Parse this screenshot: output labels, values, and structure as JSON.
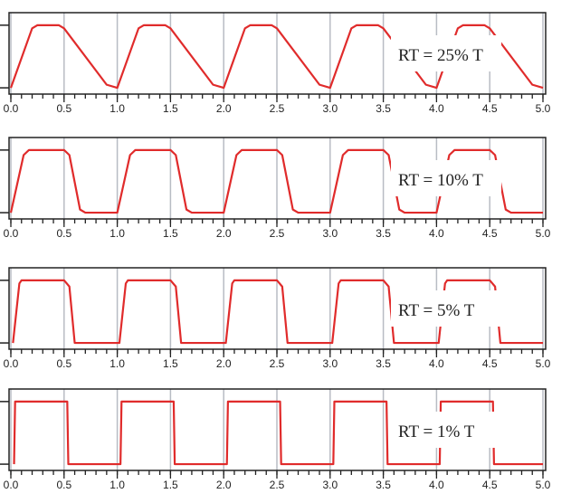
{
  "chart_data": [
    {
      "type": "line",
      "annotation": "RT = 25% T",
      "xlim": [
        0,
        5
      ],
      "ylim": [
        -0.1,
        1.2
      ],
      "yticks": [
        0,
        1
      ],
      "grid": true,
      "xticks": [
        {
          "value": 0,
          "label": "0.0"
        },
        0.5,
        {
          "value": 1,
          "label": "1.0"
        },
        1.5,
        {
          "value": 2,
          "label": "2.0"
        },
        2.5,
        {
          "value": 3,
          "label": "3.0"
        },
        3.5,
        {
          "value": 4,
          "label": "4.0"
        },
        4.5,
        {
          "value": 5,
          "label": "5.0"
        }
      ],
      "xminorticks": [
        0,
        0.1,
        0.2,
        0.3,
        0.4,
        0.5,
        0.6,
        0.7,
        0.8,
        0.9,
        1,
        1.1,
        1.2,
        1.3,
        1.4,
        1.5,
        1.6,
        1.7,
        1.8,
        1.9,
        2,
        2.1,
        2.2,
        2.3,
        2.4,
        2.5,
        2.6,
        2.7,
        2.8,
        2.9,
        3,
        3.1,
        3.2,
        3.3,
        3.4,
        3.5,
        3.6,
        3.7,
        3.8,
        3.9,
        4,
        4.1,
        4.2,
        4.3,
        4.4,
        4.5,
        4.6,
        4.7,
        4.8,
        4.9,
        5
      ],
      "color": "#e02b2b",
      "x": [
        0,
        0.2,
        0.25,
        0.45,
        0.5,
        0.9,
        1,
        1.2,
        1.25,
        1.45,
        1.5,
        1.9,
        2,
        2.2,
        2.25,
        2.45,
        2.5,
        2.9,
        3,
        3.2,
        3.25,
        3.45,
        3.5,
        3.9,
        4,
        4.2,
        4.25,
        4.45,
        4.5,
        4.9,
        5
      ],
      "values": [
        0,
        0.95,
        1,
        1,
        0.95,
        0.05,
        0,
        0.95,
        1,
        1,
        0.95,
        0.05,
        0,
        0.95,
        1,
        1,
        0.95,
        0.05,
        0,
        0.95,
        1,
        1,
        0.95,
        0.05,
        0,
        0.95,
        1,
        1,
        0.95,
        0.05,
        0
      ]
    },
    {
      "type": "line",
      "annotation": "RT = 10% T",
      "xlim": [
        0,
        5
      ],
      "ylim": [
        -0.1,
        1.2
      ],
      "yticks": [
        0,
        1
      ],
      "grid": true,
      "xticks": [
        {
          "value": 0,
          "label": "0.0"
        },
        0.5,
        {
          "value": 1,
          "label": "1.0"
        },
        1.5,
        {
          "value": 2,
          "label": "2.0"
        },
        2.5,
        {
          "value": 3,
          "label": "3.0"
        },
        3.5,
        {
          "value": 4,
          "label": "4.0"
        },
        4.5,
        {
          "value": 5,
          "label": "5.0"
        }
      ],
      "xminorticks": [
        0,
        0.1,
        0.2,
        0.3,
        0.4,
        0.5,
        0.6,
        0.7,
        0.8,
        0.9,
        1,
        1.1,
        1.2,
        1.3,
        1.4,
        1.5,
        1.6,
        1.7,
        1.8,
        1.9,
        2,
        2.1,
        2.2,
        2.3,
        2.4,
        2.5,
        2.6,
        2.7,
        2.8,
        2.9,
        3,
        3.1,
        3.2,
        3.3,
        3.4,
        3.5,
        3.6,
        3.7,
        3.8,
        3.9,
        4,
        4.1,
        4.2,
        4.3,
        4.4,
        4.5,
        4.6,
        4.7,
        4.8,
        4.9,
        5
      ],
      "color": "#e02b2b",
      "x": [
        0,
        0.12,
        0.17,
        0.5,
        0.55,
        0.65,
        0.7,
        1,
        1.12,
        1.17,
        1.5,
        1.55,
        1.65,
        1.7,
        2,
        2.12,
        2.17,
        2.5,
        2.55,
        2.65,
        2.7,
        3,
        3.12,
        3.17,
        3.5,
        3.55,
        3.65,
        3.7,
        4,
        4.12,
        4.17,
        4.5,
        4.55,
        4.65,
        4.7,
        5
      ],
      "values": [
        0,
        0.92,
        1,
        1,
        0.92,
        0.05,
        0,
        0,
        0.92,
        1,
        1,
        0.92,
        0.05,
        0,
        0,
        0.92,
        1,
        1,
        0.92,
        0.05,
        0,
        0,
        0.92,
        1,
        1,
        0.92,
        0.05,
        0,
        0,
        0.92,
        1,
        1,
        0.92,
        0.05,
        0,
        0
      ]
    },
    {
      "type": "line",
      "annotation": "RT = 5% T",
      "xlim": [
        0,
        5
      ],
      "ylim": [
        -0.1,
        1.2
      ],
      "yticks": [
        0,
        1
      ],
      "grid": true,
      "xticks": [
        {
          "value": 0,
          "label": "0.0"
        },
        0.5,
        {
          "value": 1,
          "label": "1.0"
        },
        1.5,
        {
          "value": 2,
          "label": "2.0"
        },
        2.5,
        {
          "value": 3,
          "label": "3.0"
        },
        3.5,
        {
          "value": 4,
          "label": "4.0"
        },
        4.5,
        {
          "value": 5,
          "label": "5.0"
        }
      ],
      "xminorticks": [
        0,
        0.1,
        0.2,
        0.3,
        0.4,
        0.5,
        0.6,
        0.7,
        0.8,
        0.9,
        1,
        1.1,
        1.2,
        1.3,
        1.4,
        1.5,
        1.6,
        1.7,
        1.8,
        1.9,
        2,
        2.1,
        2.2,
        2.3,
        2.4,
        2.5,
        2.6,
        2.7,
        2.8,
        2.9,
        3,
        3.1,
        3.2,
        3.3,
        3.4,
        3.5,
        3.6,
        3.7,
        3.8,
        3.9,
        4,
        4.1,
        4.2,
        4.3,
        4.4,
        4.5,
        4.6,
        4.7,
        4.8,
        4.9,
        5
      ],
      "color": "#e02b2b",
      "x": [
        0.02,
        0.08,
        0.1,
        0.5,
        0.55,
        0.6,
        1.02,
        1.08,
        1.1,
        1.5,
        1.55,
        1.6,
        2.02,
        2.08,
        2.1,
        2.5,
        2.55,
        2.6,
        3.02,
        3.08,
        3.1,
        3.5,
        3.55,
        3.6,
        4.02,
        4.08,
        4.1,
        4.5,
        4.55,
        4.6,
        5
      ],
      "values": [
        0,
        0.95,
        1,
        1,
        0.9,
        0,
        0,
        0.95,
        1,
        1,
        0.9,
        0,
        0,
        0.95,
        1,
        1,
        0.9,
        0,
        0,
        0.95,
        1,
        1,
        0.9,
        0,
        0,
        0.95,
        1,
        1,
        0.9,
        0,
        0
      ]
    },
    {
      "type": "line",
      "annotation": "RT = 1% T",
      "xlim": [
        0,
        5
      ],
      "ylim": [
        -0.1,
        1.2
      ],
      "yticks": [
        0,
        1
      ],
      "grid": true,
      "xticks": [
        {
          "value": 0,
          "label": "0.0"
        },
        0.5,
        {
          "value": 1,
          "label": "1.0"
        },
        1.5,
        {
          "value": 2,
          "label": "2.0"
        },
        2.5,
        {
          "value": 3,
          "label": "3.0"
        },
        3.5,
        {
          "value": 4,
          "label": "4.0"
        },
        4.5,
        {
          "value": 5,
          "label": "5.0"
        }
      ],
      "xminorticks": [
        0,
        0.1,
        0.2,
        0.3,
        0.4,
        0.5,
        0.6,
        0.7,
        0.8,
        0.9,
        1,
        1.1,
        1.2,
        1.3,
        1.4,
        1.5,
        1.6,
        1.7,
        1.8,
        1.9,
        2,
        2.1,
        2.2,
        2.3,
        2.4,
        2.5,
        2.6,
        2.7,
        2.8,
        2.9,
        3,
        3.1,
        3.2,
        3.3,
        3.4,
        3.5,
        3.6,
        3.7,
        3.8,
        3.9,
        4,
        4.1,
        4.2,
        4.3,
        4.4,
        4.5,
        4.6,
        4.7,
        4.8,
        4.9,
        5
      ],
      "color": "#e02b2b",
      "x": [
        0.03,
        0.04,
        0.53,
        0.54,
        1.03,
        1.04,
        1.53,
        1.54,
        2.03,
        2.04,
        2.53,
        2.54,
        3.03,
        3.04,
        3.53,
        3.54,
        4.03,
        4.04,
        4.53,
        4.54,
        5
      ],
      "values": [
        0,
        1,
        1,
        0,
        0,
        1,
        1,
        0,
        0,
        1,
        1,
        0,
        0,
        1,
        1,
        0,
        0,
        1,
        1,
        0,
        0
      ]
    }
  ]
}
